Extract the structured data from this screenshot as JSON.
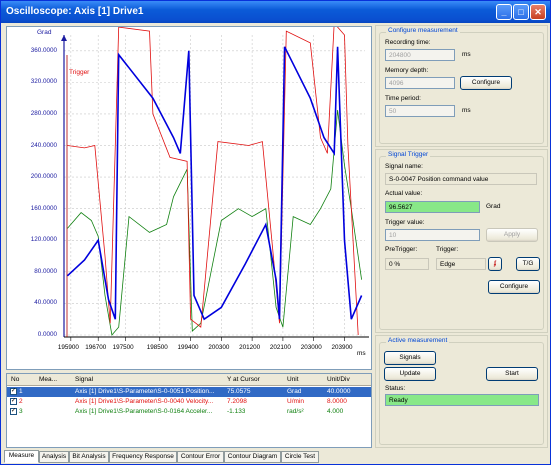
{
  "window": {
    "title": "Oscilloscope: Axis [1]  Drive1",
    "min": "_",
    "max": "□",
    "close": "✕"
  },
  "plot": {
    "y_unit": "Grad",
    "trigger_label": "Trigger",
    "x_unit": "ms",
    "y_ticks": [
      "360.0000",
      "320.0000",
      "280.0000",
      "240.0000",
      "200.0000",
      "160.0000",
      "120.0000",
      "80.0000",
      "40.0000",
      "0.0000"
    ],
    "x_ticks": [
      "195900",
      "196700",
      "197500",
      "198500",
      "199400",
      "200300",
      "201200",
      "202100",
      "203000",
      "203900"
    ]
  },
  "chart_data": {
    "type": "line",
    "title": "",
    "xlabel": "ms",
    "ylabel": "Grad",
    "ylim": [
      0,
      380
    ],
    "grid": true,
    "x": [
      195900,
      196700,
      197500,
      198500,
      199400,
      200300,
      201200,
      202100,
      203000,
      203900
    ],
    "series": [
      {
        "name": "Axis [1] Drive1\\S-Parameter\\S-0-0051 Position...",
        "color": "#0000dd",
        "points": [
          [
            195800,
            75
          ],
          [
            196300,
            95
          ],
          [
            196700,
            120
          ],
          [
            197000,
            45
          ],
          [
            197200,
            20
          ],
          [
            197300,
            355
          ],
          [
            198300,
            300
          ],
          [
            198900,
            250
          ],
          [
            199100,
            230
          ],
          [
            199350,
            360
          ],
          [
            199500,
            50
          ],
          [
            199800,
            20
          ],
          [
            200300,
            35
          ],
          [
            201000,
            90
          ],
          [
            201600,
            140
          ],
          [
            201900,
            70
          ],
          [
            202000,
            20
          ],
          [
            202150,
            365
          ],
          [
            202900,
            300
          ],
          [
            203300,
            250
          ],
          [
            203600,
            230
          ],
          [
            203700,
            365
          ],
          [
            203900,
            120
          ],
          [
            204100,
            20
          ],
          [
            204400,
            50
          ]
        ]
      },
      {
        "name": "Axis [1] Drive1\\S-Parameter\\S-0-0040 Velocity...",
        "color": "#e01010",
        "points": [
          [
            195800,
            240
          ],
          [
            196300,
            237
          ],
          [
            196600,
            240
          ],
          [
            196900,
            100
          ],
          [
            197050,
            15
          ],
          [
            197300,
            390
          ],
          [
            198200,
            385
          ],
          [
            198300,
            280
          ],
          [
            198800,
            225
          ],
          [
            199300,
            220
          ],
          [
            199400,
            20
          ],
          [
            199700,
            10
          ],
          [
            200200,
            245
          ],
          [
            201100,
            240
          ],
          [
            201500,
            245
          ],
          [
            201800,
            110
          ],
          [
            202000,
            15
          ],
          [
            202200,
            385
          ],
          [
            202900,
            370
          ],
          [
            203200,
            250
          ],
          [
            203400,
            230
          ],
          [
            203600,
            395
          ],
          [
            203900,
            380
          ],
          [
            204000,
            240
          ],
          [
            204300,
            0
          ]
        ]
      },
      {
        "name": "Axis [1] Drive1\\S-Parameter\\S-0-0164 Acceler...",
        "color": "#108010",
        "points": [
          [
            195800,
            135
          ],
          [
            196200,
            155
          ],
          [
            196500,
            145
          ],
          [
            196700,
            125
          ],
          [
            196900,
            50
          ],
          [
            197100,
            0
          ],
          [
            197300,
            10
          ],
          [
            197600,
            150
          ],
          [
            198200,
            130
          ],
          [
            198700,
            140
          ],
          [
            198900,
            175
          ],
          [
            199300,
            210
          ],
          [
            199450,
            5
          ],
          [
            199700,
            15
          ],
          [
            200300,
            145
          ],
          [
            200800,
            160
          ],
          [
            201200,
            150
          ],
          [
            201600,
            160
          ],
          [
            201900,
            35
          ],
          [
            202100,
            10
          ],
          [
            202400,
            150
          ],
          [
            202900,
            140
          ],
          [
            203200,
            160
          ],
          [
            203500,
            185
          ],
          [
            203700,
            285
          ],
          [
            203900,
            215
          ],
          [
            204100,
            160
          ],
          [
            204400,
            70
          ]
        ]
      }
    ]
  },
  "channels": {
    "headers": [
      "No",
      "Mea...",
      "Signal",
      "Y at Cursor",
      "Unit",
      "Unit/Div"
    ],
    "rows": [
      {
        "no": "1",
        "signal": "Axis [1] Drive1\\S-Parameter\\S-0-0051 Position...",
        "y": "75.0575",
        "unit": "Grad",
        "div": "40.0000",
        "color": "#ffffff"
      },
      {
        "no": "2",
        "signal": "Axis [1] Drive1\\S-Parameter\\S-0-0040 Velocity...",
        "y": "7.2098",
        "unit": "U/min",
        "div": "8.0000",
        "color": "#e01010"
      },
      {
        "no": "3",
        "signal": "Axis [1] Drive1\\S-Parameter\\S-0-0164 Acceler...",
        "y": "-1.133",
        "unit": "rad/s²",
        "div": "4.000",
        "color": "#108010"
      }
    ]
  },
  "tabs": [
    "Measure",
    "Analysis",
    "Bit Analysis",
    "Frequency Response",
    "Contour Error",
    "Contour Diagram",
    "Circle Test"
  ],
  "configure_measurement": {
    "title": "Configure measurement",
    "recording_time_label": "Recording time:",
    "recording_time": "204800",
    "recording_time_unit": "ms",
    "memory_depth_label": "Memory depth:",
    "memory_depth": "4096",
    "configure_button": "Configure",
    "time_period_label": "Time period:",
    "time_period": "50",
    "time_period_unit": "ms"
  },
  "signal_trigger": {
    "title": "Signal Trigger",
    "signal_name_label": "Signal name:",
    "signal_name": "S-0-0047 Position command value",
    "actual_value_label": "Actual value:",
    "actual_value": "96.5627",
    "actual_unit": "Grad",
    "trigger_value_label": "Trigger value:",
    "trigger_value": "10",
    "apply_button": "Apply",
    "pretrigger_label": "PreTrigger:",
    "pretrigger": "0 %",
    "trigger_label": "Trigger:",
    "trigger": "Edge",
    "edge_icon": "ʄ",
    "tg_button": "T/G",
    "configure_button": "Configure"
  },
  "active_measurement": {
    "title": "Active measurement",
    "signals_button": "Signals",
    "update_button": "Update",
    "start_button": "Start",
    "status_label": "Status:",
    "status": "Ready"
  }
}
